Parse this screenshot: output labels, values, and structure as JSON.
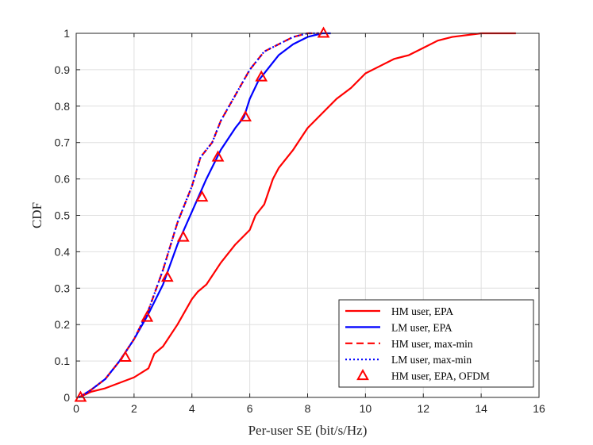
{
  "chart_data": {
    "type": "line",
    "title": "",
    "xlabel": "Per-user SE (bit/s/Hz)",
    "ylabel": "CDF",
    "xlim": [
      0,
      16
    ],
    "ylim": [
      0,
      1
    ],
    "xticks": [
      "0",
      "2",
      "4",
      "6",
      "8",
      "10",
      "12",
      "14",
      "16"
    ],
    "yticks": [
      "0",
      "0.1",
      "0.2",
      "0.3",
      "0.4",
      "0.5",
      "0.6",
      "0.7",
      "0.8",
      "0.9",
      "1"
    ],
    "grid": true,
    "legend_position": "bottom-right",
    "series": [
      {
        "name": "HM user, EPA",
        "color": "#ff0000",
        "style": "solid",
        "marker": "none",
        "x": [
          0.1,
          0.5,
          1.0,
          1.5,
          2.0,
          2.5,
          2.7,
          3.0,
          3.5,
          4.0,
          4.2,
          4.5,
          5.0,
          5.5,
          6.0,
          6.2,
          6.5,
          6.8,
          7.0,
          7.5,
          8.0,
          8.5,
          9.0,
          9.5,
          10.0,
          10.5,
          11.0,
          11.5,
          12.0,
          12.5,
          13.0,
          14.0,
          15.2
        ],
        "y": [
          0.0,
          0.015,
          0.025,
          0.04,
          0.055,
          0.08,
          0.12,
          0.14,
          0.2,
          0.27,
          0.29,
          0.31,
          0.37,
          0.42,
          0.46,
          0.5,
          0.53,
          0.6,
          0.63,
          0.68,
          0.74,
          0.78,
          0.82,
          0.85,
          0.89,
          0.91,
          0.93,
          0.94,
          0.96,
          0.98,
          0.99,
          1.0,
          1.0
        ]
      },
      {
        "name": "LM user, EPA",
        "color": "#0000ff",
        "style": "solid",
        "marker": "none",
        "x": [
          0.1,
          0.5,
          1.0,
          1.5,
          2.0,
          2.5,
          3.0,
          3.5,
          4.0,
          4.5,
          5.0,
          5.5,
          5.8,
          6.0,
          6.3,
          6.6,
          7.0,
          7.5,
          8.0,
          8.5,
          8.8
        ],
        "y": [
          0.0,
          0.02,
          0.05,
          0.1,
          0.16,
          0.23,
          0.31,
          0.42,
          0.51,
          0.6,
          0.68,
          0.74,
          0.77,
          0.82,
          0.87,
          0.9,
          0.94,
          0.97,
          0.99,
          1.0,
          1.0
        ]
      },
      {
        "name": "HM user, max-min",
        "color": "#ff0000",
        "style": "dashed",
        "marker": "none",
        "x": [
          0.1,
          0.5,
          1.0,
          1.5,
          2.0,
          2.5,
          3.0,
          3.5,
          4.0,
          4.3,
          4.7,
          5.0,
          5.5,
          6.0,
          6.5,
          7.0,
          7.5,
          8.0,
          8.4
        ],
        "y": [
          0.0,
          0.02,
          0.05,
          0.1,
          0.16,
          0.24,
          0.35,
          0.48,
          0.58,
          0.66,
          0.7,
          0.76,
          0.83,
          0.9,
          0.95,
          0.97,
          0.99,
          1.0,
          1.0
        ]
      },
      {
        "name": "LM user, max-min",
        "color": "#0000ff",
        "style": "dotted",
        "marker": "none",
        "x": [
          0.1,
          0.5,
          1.0,
          1.5,
          2.0,
          2.5,
          3.0,
          3.5,
          4.0,
          4.3,
          4.7,
          5.0,
          5.5,
          6.0,
          6.5,
          7.0,
          7.5,
          8.0,
          8.5
        ],
        "y": [
          0.0,
          0.02,
          0.05,
          0.1,
          0.16,
          0.24,
          0.35,
          0.48,
          0.58,
          0.66,
          0.7,
          0.76,
          0.83,
          0.9,
          0.95,
          0.97,
          0.99,
          1.0,
          1.0
        ]
      },
      {
        "name": "HM user, EPA, OFDM",
        "color": "#ff0000",
        "style": "none",
        "marker": "triangle",
        "x": [
          0.15,
          1.7,
          2.45,
          3.15,
          3.7,
          4.35,
          4.9,
          5.85,
          6.4,
          8.55
        ],
        "y": [
          0.0,
          0.11,
          0.22,
          0.33,
          0.44,
          0.55,
          0.66,
          0.77,
          0.88,
          1.0
        ]
      }
    ]
  }
}
